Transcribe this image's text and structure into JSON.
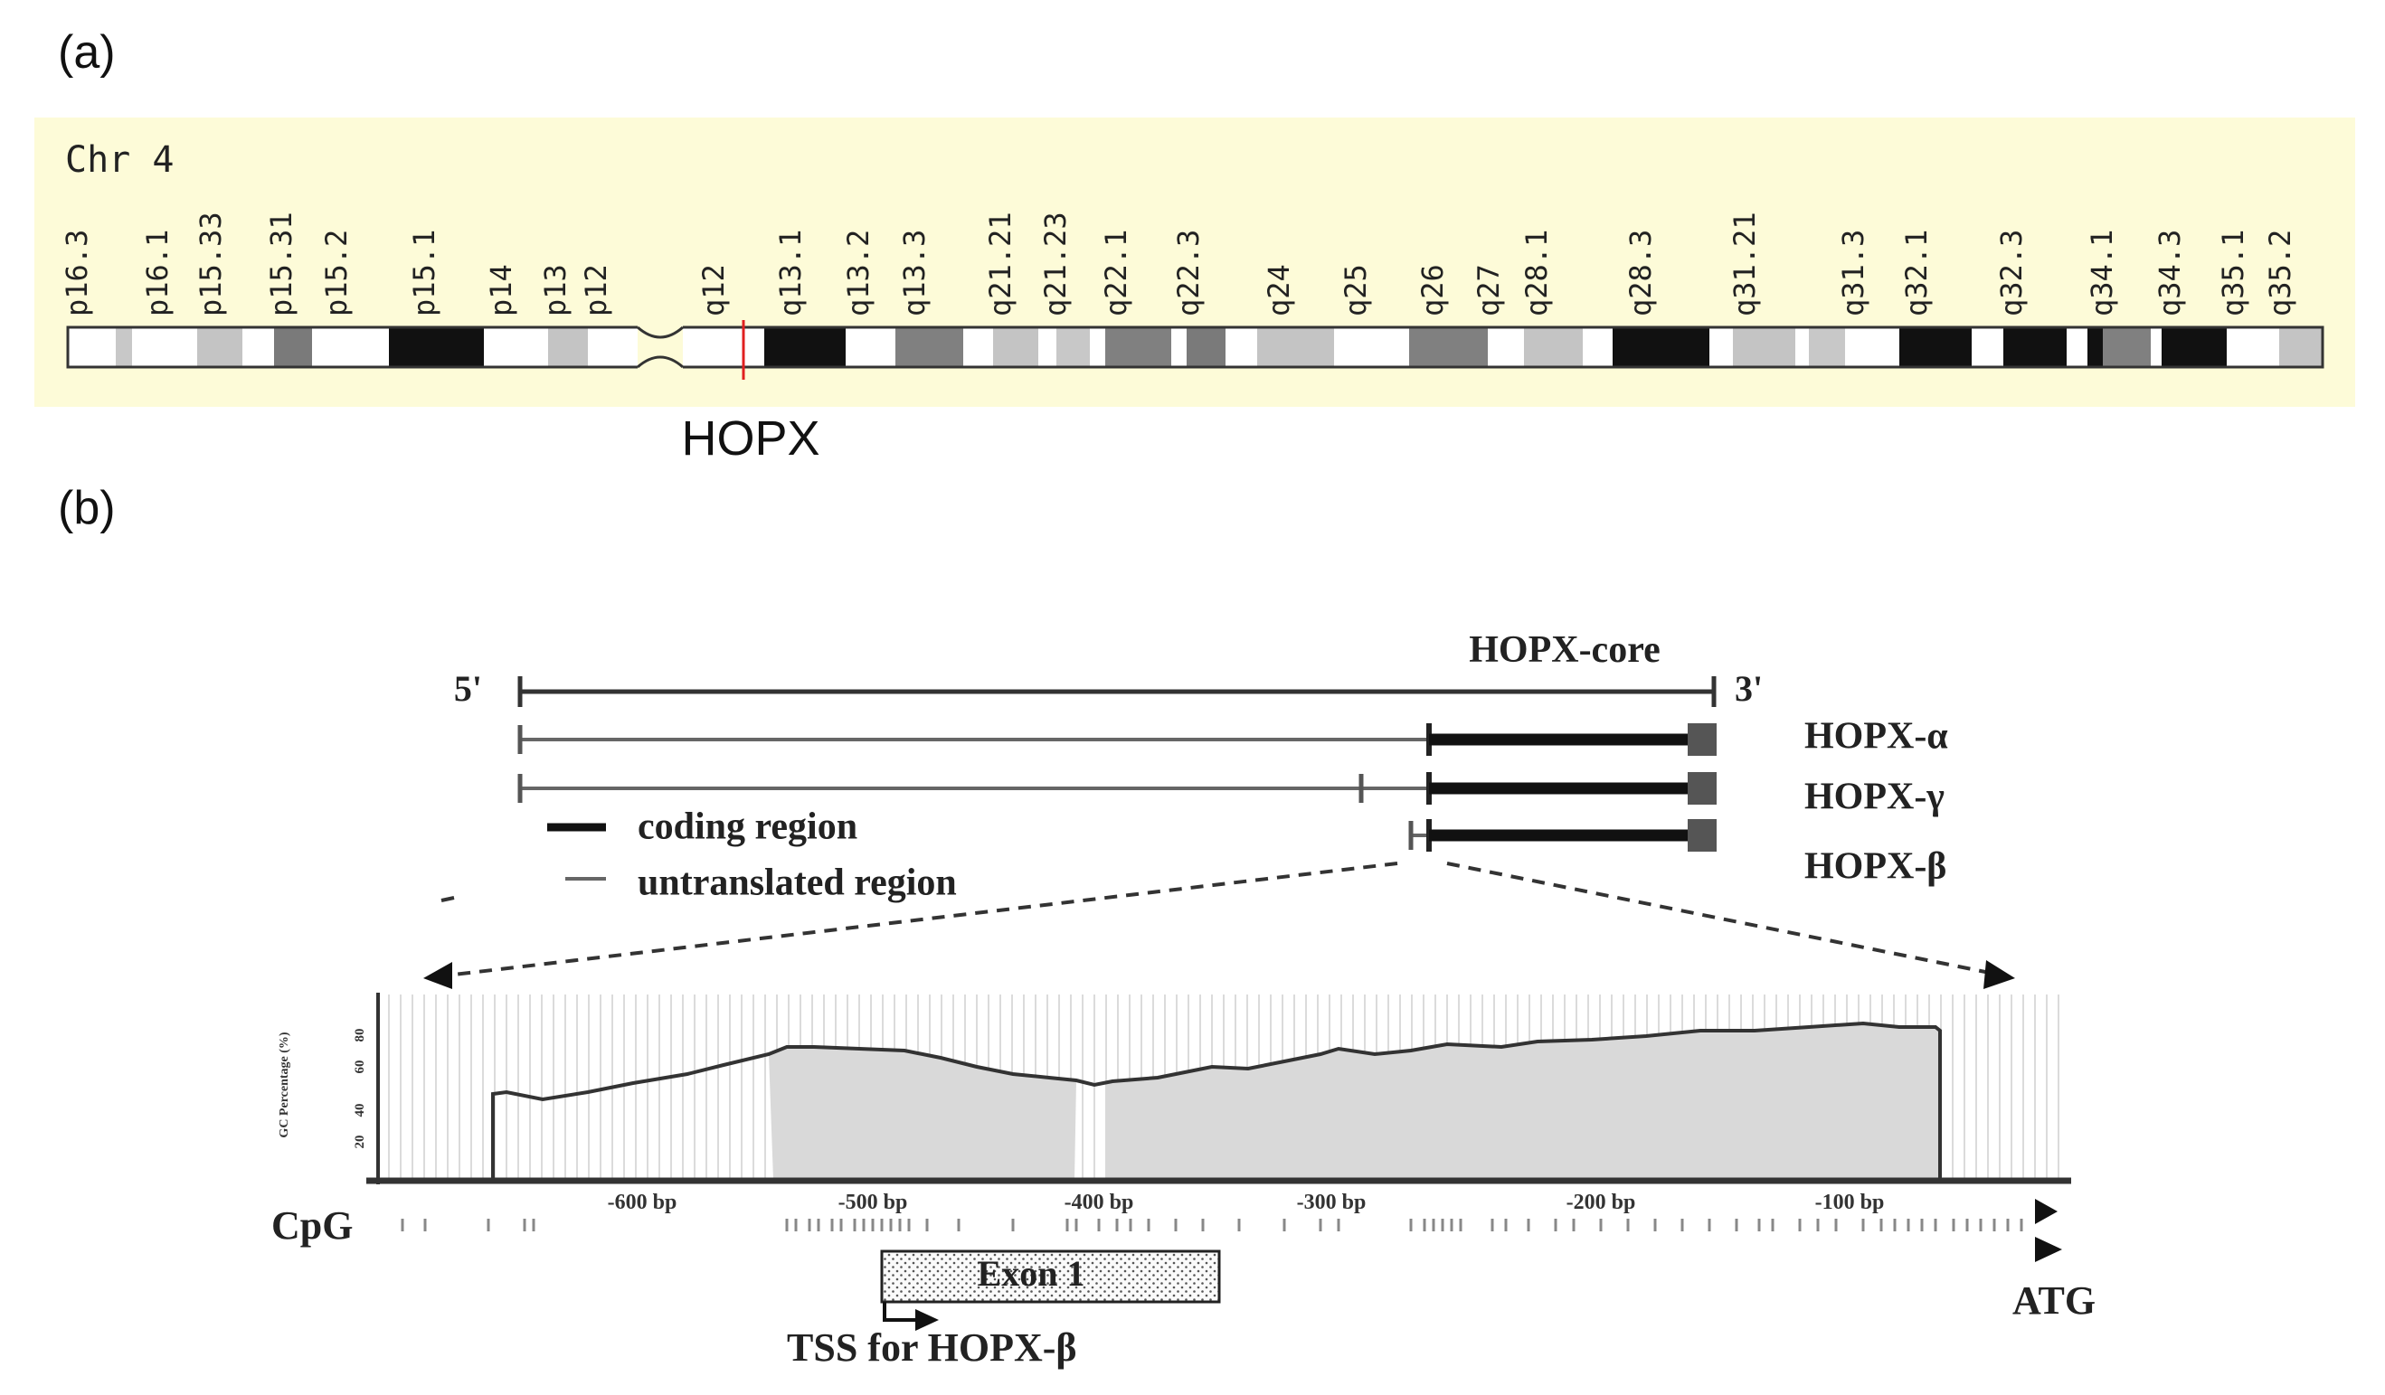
{
  "panel_a": {
    "label": "(a)",
    "chromosome": "Chr 4",
    "bands": [
      "p16.3",
      "p16.1",
      "p15.33",
      "p15.31",
      "p15.2",
      "p15.1",
      "p14",
      "p13",
      "p12",
      "q12",
      "q13.1",
      "q13.2",
      "q13.3",
      "q21.21",
      "q21.23",
      "q22.1",
      "q22.3",
      "q24",
      "q25",
      "q26",
      "q27",
      "q28.1",
      "q28.3",
      "q31.21",
      "q31.3",
      "q32.1",
      "q32.3",
      "q34.1",
      "q34.3",
      "q35.1",
      "q35.2"
    ],
    "gene_label": "HOPX",
    "colors": {
      "background": "#fdfbd8",
      "marker": "#e02020"
    }
  },
  "panel_b": {
    "label": "(b)",
    "five_prime": "5'",
    "three_prime": "3'",
    "transcripts": [
      "HOPX-core",
      "HOPX-α",
      "HOPX-γ",
      "HOPX-β"
    ],
    "legend": {
      "coding": "coding region",
      "untranslated": "untranslated region"
    },
    "y_axis_label": "GC Percentage (%)",
    "y_ticks": [
      "80",
      "60",
      "40",
      "20"
    ],
    "x_ticks": [
      "-600 bp",
      "-500 bp",
      "-400 bp",
      "-300 bp",
      "-200 bp",
      "-100 bp"
    ],
    "cpg_label": "CpG",
    "exon_label": "Exon 1",
    "tss_label": "TSS for HOPX-β",
    "atg_label": "ATG"
  }
}
